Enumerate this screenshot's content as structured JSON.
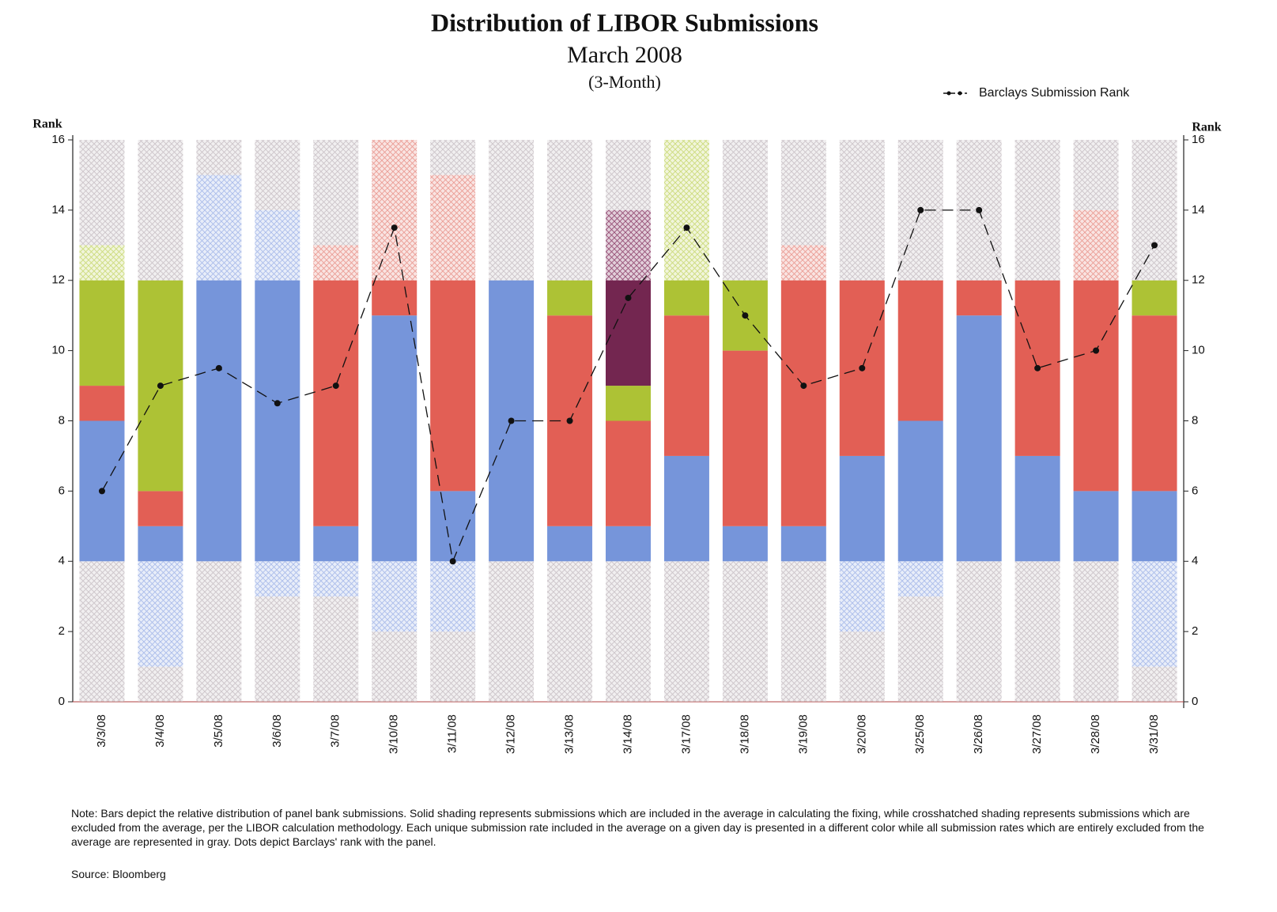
{
  "chart_data": {
    "type": "stacked_bar",
    "title": "Distribution of LIBOR Submissions",
    "subtitle": "March 2008",
    "subtitle2": "(3-Month)",
    "ylabel": "Rank",
    "y2label": "Rank",
    "note": "Note:  Bars depict the relative distribution of panel bank submissions.  Solid shading represents submissions which are included in the average in calculating the fixing, while crosshatched shading represents submissions which are excluded from the average, per the LIBOR calculation methodology.  Each unique submission rate included in the average on a given day is presented in a different color while all submission rates which are entirely excluded from the average are represented in gray.  Dots depict Barclays' rank with the panel.",
    "source": "Source: Bloomberg",
    "ylim": [
      0,
      16
    ],
    "yticks": [
      0,
      2,
      4,
      6,
      8,
      10,
      12,
      14,
      16
    ],
    "y2lim": [
      0,
      16
    ],
    "y2ticks": [
      0,
      2,
      4,
      6,
      8,
      10,
      12,
      14,
      16
    ],
    "categories": [
      "3/3/08",
      "3/4/08",
      "3/5/08",
      "3/6/08",
      "3/7/08",
      "3/10/08",
      "3/11/08",
      "3/12/08",
      "3/13/08",
      "3/14/08",
      "3/17/08",
      "3/18/08",
      "3/19/08",
      "3/20/08",
      "3/25/08",
      "3/26/08",
      "3/27/08",
      "3/28/08",
      "3/31/08"
    ],
    "stacks": [
      [
        {
          "value": 4,
          "color": "#c8bfc5",
          "hatched": true
        },
        {
          "value": 4,
          "color": "#6f8fd8"
        },
        {
          "value": 1,
          "color": "#e0564c"
        },
        {
          "value": 3,
          "color": "#a9bf2a"
        },
        {
          "value": 1,
          "color": "#c8d870",
          "hatched": true
        },
        {
          "value": 3,
          "color": "#c8bfc5",
          "hatched": true
        }
      ],
      [
        {
          "value": 1,
          "color": "#c8bfc5",
          "hatched": true
        },
        {
          "value": 3,
          "color": "#a3b6e8",
          "hatched": true
        },
        {
          "value": 1,
          "color": "#6f8fd8"
        },
        {
          "value": 1,
          "color": "#e0564c"
        },
        {
          "value": 6,
          "color": "#a9bf2a"
        },
        {
          "value": 4,
          "color": "#c8bfc5",
          "hatched": true
        }
      ],
      [
        {
          "value": 4,
          "color": "#c8bfc5",
          "hatched": true
        },
        {
          "value": 8,
          "color": "#6f8fd8"
        },
        {
          "value": 3,
          "color": "#a3b6e8",
          "hatched": true
        },
        {
          "value": 1,
          "color": "#c8bfc5",
          "hatched": true
        }
      ],
      [
        {
          "value": 3,
          "color": "#c8bfc5",
          "hatched": true
        },
        {
          "value": 1,
          "color": "#a3b6e8",
          "hatched": true
        },
        {
          "value": 8,
          "color": "#6f8fd8"
        },
        {
          "value": 2,
          "color": "#a3b6e8",
          "hatched": true
        },
        {
          "value": 2,
          "color": "#c8bfc5",
          "hatched": true
        }
      ],
      [
        {
          "value": 3,
          "color": "#c8bfc5",
          "hatched": true
        },
        {
          "value": 1,
          "color": "#a3b6e8",
          "hatched": true
        },
        {
          "value": 1,
          "color": "#6f8fd8"
        },
        {
          "value": 7,
          "color": "#e0564c"
        },
        {
          "value": 1,
          "color": "#e8948c",
          "hatched": true
        },
        {
          "value": 3,
          "color": "#c8bfc5",
          "hatched": true
        }
      ],
      [
        {
          "value": 2,
          "color": "#c8bfc5",
          "hatched": true
        },
        {
          "value": 2,
          "color": "#a3b6e8",
          "hatched": true
        },
        {
          "value": 7,
          "color": "#6f8fd8"
        },
        {
          "value": 1,
          "color": "#e0564c"
        },
        {
          "value": 4,
          "color": "#e8948c",
          "hatched": true
        }
      ],
      [
        {
          "value": 2,
          "color": "#c8bfc5",
          "hatched": true
        },
        {
          "value": 2,
          "color": "#a3b6e8",
          "hatched": true
        },
        {
          "value": 2,
          "color": "#6f8fd8"
        },
        {
          "value": 6,
          "color": "#e0564c"
        },
        {
          "value": 3,
          "color": "#e8948c",
          "hatched": true
        },
        {
          "value": 1,
          "color": "#c8bfc5",
          "hatched": true
        }
      ],
      [
        {
          "value": 4,
          "color": "#c8bfc5",
          "hatched": true
        },
        {
          "value": 8,
          "color": "#6f8fd8"
        },
        {
          "value": 4,
          "color": "#c8bfc5",
          "hatched": true
        }
      ],
      [
        {
          "value": 4,
          "color": "#c8bfc5",
          "hatched": true
        },
        {
          "value": 1,
          "color": "#6f8fd8"
        },
        {
          "value": 6,
          "color": "#e0564c"
        },
        {
          "value": 1,
          "color": "#a9bf2a"
        },
        {
          "value": 4,
          "color": "#c8bfc5",
          "hatched": true
        }
      ],
      [
        {
          "value": 4,
          "color": "#c8bfc5",
          "hatched": true
        },
        {
          "value": 1,
          "color": "#6f8fd8"
        },
        {
          "value": 3,
          "color": "#e0564c"
        },
        {
          "value": 1,
          "color": "#a9bf2a"
        },
        {
          "value": 3,
          "color": "#6b1a47"
        },
        {
          "value": 2,
          "color": "#8d3f6a",
          "hatched": true
        },
        {
          "value": 2,
          "color": "#c8bfc5",
          "hatched": true
        }
      ],
      [
        {
          "value": 4,
          "color": "#c8bfc5",
          "hatched": true
        },
        {
          "value": 3,
          "color": "#6f8fd8"
        },
        {
          "value": 4,
          "color": "#e0564c"
        },
        {
          "value": 1,
          "color": "#a9bf2a"
        },
        {
          "value": 4,
          "color": "#c8d870",
          "hatched": true
        }
      ],
      [
        {
          "value": 4,
          "color": "#c8bfc5",
          "hatched": true
        },
        {
          "value": 1,
          "color": "#6f8fd8"
        },
        {
          "value": 5,
          "color": "#e0564c"
        },
        {
          "value": 2,
          "color": "#a9bf2a"
        },
        {
          "value": 4,
          "color": "#c8bfc5",
          "hatched": true
        }
      ],
      [
        {
          "value": 4,
          "color": "#c8bfc5",
          "hatched": true
        },
        {
          "value": 1,
          "color": "#6f8fd8"
        },
        {
          "value": 7,
          "color": "#e0564c"
        },
        {
          "value": 1,
          "color": "#e8948c",
          "hatched": true
        },
        {
          "value": 3,
          "color": "#c8bfc5",
          "hatched": true
        }
      ],
      [
        {
          "value": 2,
          "color": "#c8bfc5",
          "hatched": true
        },
        {
          "value": 2,
          "color": "#a3b6e8",
          "hatched": true
        },
        {
          "value": 3,
          "color": "#6f8fd8"
        },
        {
          "value": 5,
          "color": "#e0564c"
        },
        {
          "value": 4,
          "color": "#c8bfc5",
          "hatched": true
        }
      ],
      [
        {
          "value": 3,
          "color": "#c8bfc5",
          "hatched": true
        },
        {
          "value": 1,
          "color": "#a3b6e8",
          "hatched": true
        },
        {
          "value": 4,
          "color": "#6f8fd8"
        },
        {
          "value": 4,
          "color": "#e0564c"
        },
        {
          "value": 4,
          "color": "#c8bfc5",
          "hatched": true
        }
      ],
      [
        {
          "value": 4,
          "color": "#c8bfc5",
          "hatched": true
        },
        {
          "value": 7,
          "color": "#6f8fd8"
        },
        {
          "value": 1,
          "color": "#e0564c"
        },
        {
          "value": 4,
          "color": "#c8bfc5",
          "hatched": true
        }
      ],
      [
        {
          "value": 4,
          "color": "#c8bfc5",
          "hatched": true
        },
        {
          "value": 3,
          "color": "#6f8fd8"
        },
        {
          "value": 5,
          "color": "#e0564c"
        },
        {
          "value": 4,
          "color": "#c8bfc5",
          "hatched": true
        }
      ],
      [
        {
          "value": 4,
          "color": "#c8bfc5",
          "hatched": true
        },
        {
          "value": 2,
          "color": "#6f8fd8"
        },
        {
          "value": 6,
          "color": "#e0564c"
        },
        {
          "value": 2,
          "color": "#e8948c",
          "hatched": true
        },
        {
          "value": 2,
          "color": "#c8bfc5",
          "hatched": true
        }
      ],
      [
        {
          "value": 1,
          "color": "#c8bfc5",
          "hatched": true
        },
        {
          "value": 3,
          "color": "#a3b6e8",
          "hatched": true
        },
        {
          "value": 2,
          "color": "#6f8fd8"
        },
        {
          "value": 5,
          "color": "#e0564c"
        },
        {
          "value": 1,
          "color": "#a9bf2a"
        },
        {
          "value": 4,
          "color": "#c8bfc5",
          "hatched": true
        }
      ]
    ],
    "series": [
      {
        "name": "Barclays Submission Rank",
        "color": "#111111",
        "values": [
          6,
          9,
          9.5,
          8.5,
          9,
          13.5,
          4,
          8,
          8,
          11.5,
          13.5,
          11,
          9,
          9.5,
          14,
          14,
          9.5,
          10,
          13
        ]
      }
    ]
  }
}
